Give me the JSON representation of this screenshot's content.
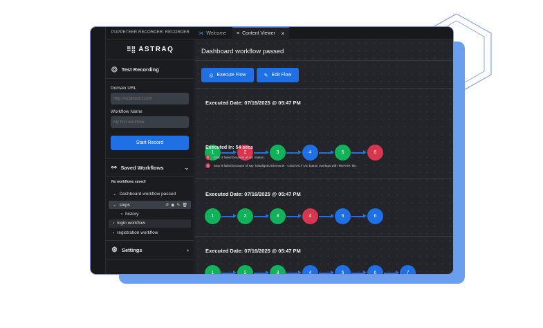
{
  "app_title": "PUPPETEER RECORDER: RECORDER",
  "tabs": [
    {
      "label": "Welcome",
      "active": false
    },
    {
      "label": "Content Viewer",
      "active": true
    }
  ],
  "sidebar": {
    "logo": "ASTRAQ",
    "test_recording": "Test Recording",
    "domain_label": "Domain URL",
    "domain_placeholder": "http://localhost:3100/",
    "workflow_label": "Workflow Name",
    "workflow_placeholder": "My first workflow",
    "start_record": "Start Record",
    "saved_workflows": "Saved Workflows",
    "no_workflows": "No workflows saved!",
    "tree": [
      {
        "label": "Dashboard workflow passed"
      },
      {
        "label": "steps"
      },
      {
        "label": "history"
      },
      {
        "label": "login workflow"
      },
      {
        "label": "registration workflow"
      }
    ],
    "settings": "Settings"
  },
  "main": {
    "title": "Dashboard workflow passed",
    "execute_flow": "Execute Flow",
    "edit_flow": "Edit Flow",
    "runs": [
      {
        "date": "Executed Date: 07/16/2025 @ 05:47 PM",
        "steps": [
          "pass",
          "fail",
          "pass",
          "pending",
          "pass",
          "fail"
        ],
        "executed_in": "Executed In: 54 secs",
        "errors": [
          "Step 2 failed because of xyz reason.",
          "Step 6 failed because of say 'Misaligned Elements - CONTACT US' button overlaps with 'REPAIR' tile."
        ]
      },
      {
        "date": "Executed Date: 07/16/2025 @ 05:47 PM",
        "steps": [
          "pass",
          "pass",
          "pass",
          "fail",
          "pending",
          "pending"
        ]
      },
      {
        "date": "Executed Date: 07/16/2025 @ 05:47 PM",
        "steps": [
          "pass",
          "pass",
          "pass",
          "pending",
          "pending",
          "pending",
          "pending"
        ]
      }
    ]
  },
  "colors": {
    "pass": "#12b25a",
    "fail": "#d8354f",
    "pending": "#1f6fe5",
    "accent": "#1f6fe5"
  }
}
